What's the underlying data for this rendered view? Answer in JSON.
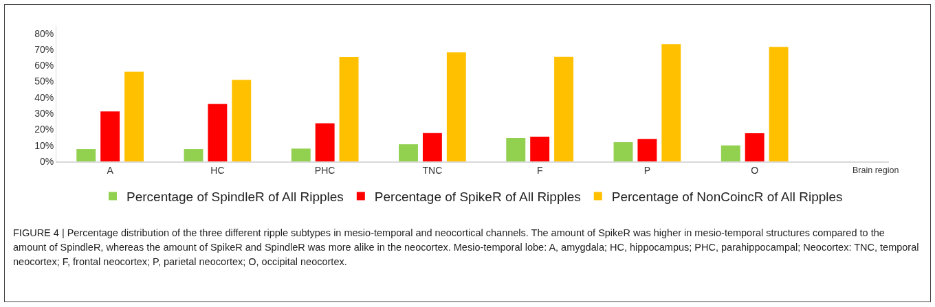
{
  "chart_data": {
    "type": "bar",
    "categories": [
      "A",
      "HC",
      "PHC",
      "TNC",
      "F",
      "P",
      "O"
    ],
    "xlabel": "Brain region",
    "series": [
      {
        "name": "Percentage of SpindleR of All Ripples",
        "color": "#92d050",
        "values": [
          7.7,
          7.7,
          8,
          10.7,
          14.6,
          12,
          10
        ]
      },
      {
        "name": "Percentage of SpikeR of All Ripples",
        "color": "#ff0000",
        "values": [
          31.2,
          36,
          23.8,
          17.7,
          15.5,
          14.1,
          17.6
        ]
      },
      {
        "name": "Percentage of NonCoincR of All Ripples",
        "color": "#ffc000",
        "values": [
          56,
          51,
          65.2,
          68.2,
          65.4,
          73.3,
          71.6
        ]
      }
    ],
    "ylim": [
      0,
      85
    ],
    "yticks": [
      {
        "value": 0,
        "label": "0%"
      },
      {
        "value": 10,
        "label": "10%"
      },
      {
        "value": 20,
        "label": "20%"
      },
      {
        "value": 30,
        "label": "30%"
      },
      {
        "value": 40,
        "label": "40%"
      },
      {
        "value": 50,
        "label": "50%"
      },
      {
        "value": 60,
        "label": "60%"
      },
      {
        "value": 70,
        "label": "70%"
      },
      {
        "value": 80,
        "label": "80%"
      }
    ],
    "grid": false,
    "legend": "bottom",
    "annotations": [
      "FIGURE 4 | Percentage distribution of the three different ripple subtypes in mesio-temporal and neocortical channels. The amount of SpikeR was higher in mesio-temporal structures compared to the amount of SpindleR, whereas the amount of SpikeR and SpindleR was more alike in the neocortex. Mesio-temporal lobe: A, amygdala; HC, hippocampus; PHC, parahippocampal; Neocortex: TNC, temporal neocortex; F, frontal neocortex; P, parietal neocortex; O, occipital neocortex."
    ]
  }
}
